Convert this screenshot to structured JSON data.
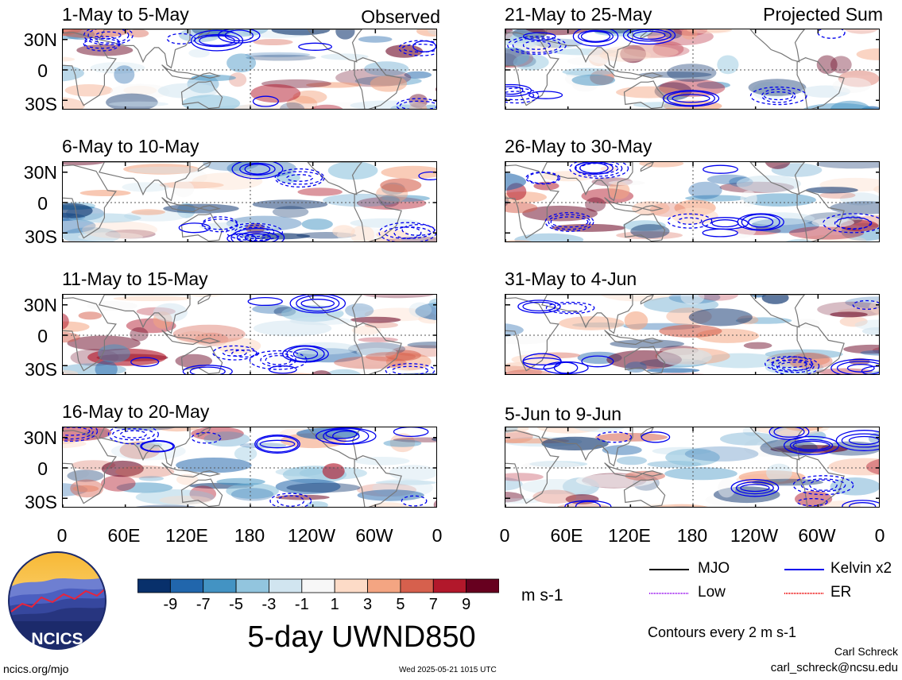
{
  "figure": {
    "title": "5-day UWND850",
    "units": "m s-1",
    "contour_note": "Contours every 2 m s-1",
    "author": "Carl Schreck",
    "email": "carl_schreck@ncsu.edu",
    "website": "ncics.org/mjo",
    "timestamp": "Wed 2025-05-21 1015 UTC",
    "logo_text": "NCICS",
    "observed_label": "Observed",
    "projected_label": "Projected Sum"
  },
  "chart_data": {
    "type": "heatmap",
    "variable": "850-hPa zonal wind anomaly",
    "lat_ticks": [
      "30N",
      "0",
      "30S"
    ],
    "lon_ticks": [
      "0",
      "60E",
      "120E",
      "180",
      "120W",
      "60W",
      "0"
    ],
    "colorbar": {
      "ticks": [
        "-9",
        "-7",
        "-5",
        "-3",
        "-1",
        "1",
        "3",
        "5",
        "7",
        "9"
      ],
      "colors": [
        "#08306b",
        "#2166ac",
        "#4393c3",
        "#92c5de",
        "#d1e5f0",
        "#f7f7f7",
        "#fddbc7",
        "#f4a582",
        "#d6604d",
        "#b2182b",
        "#67001f"
      ]
    },
    "legend": [
      {
        "name": "MJO",
        "color": "#000000"
      },
      {
        "name": "Kelvin x2",
        "color": "#0000ee"
      },
      {
        "name": "Low",
        "color": "#a020f0"
      },
      {
        "name": "ER",
        "color": "#ee0000"
      }
    ],
    "panels": [
      {
        "title": "1-May to 5-May",
        "column": "observed"
      },
      {
        "title": "6-May to 10-May",
        "column": "observed"
      },
      {
        "title": "11-May to 15-May",
        "column": "observed"
      },
      {
        "title": "16-May to 20-May",
        "column": "observed"
      },
      {
        "title": "21-May to 25-May",
        "column": "projected"
      },
      {
        "title": "26-May to 30-May",
        "column": "projected"
      },
      {
        "title": "31-May to 4-Jun",
        "column": "projected"
      },
      {
        "title": "5-Jun to 9-Jun",
        "column": "projected"
      }
    ]
  }
}
